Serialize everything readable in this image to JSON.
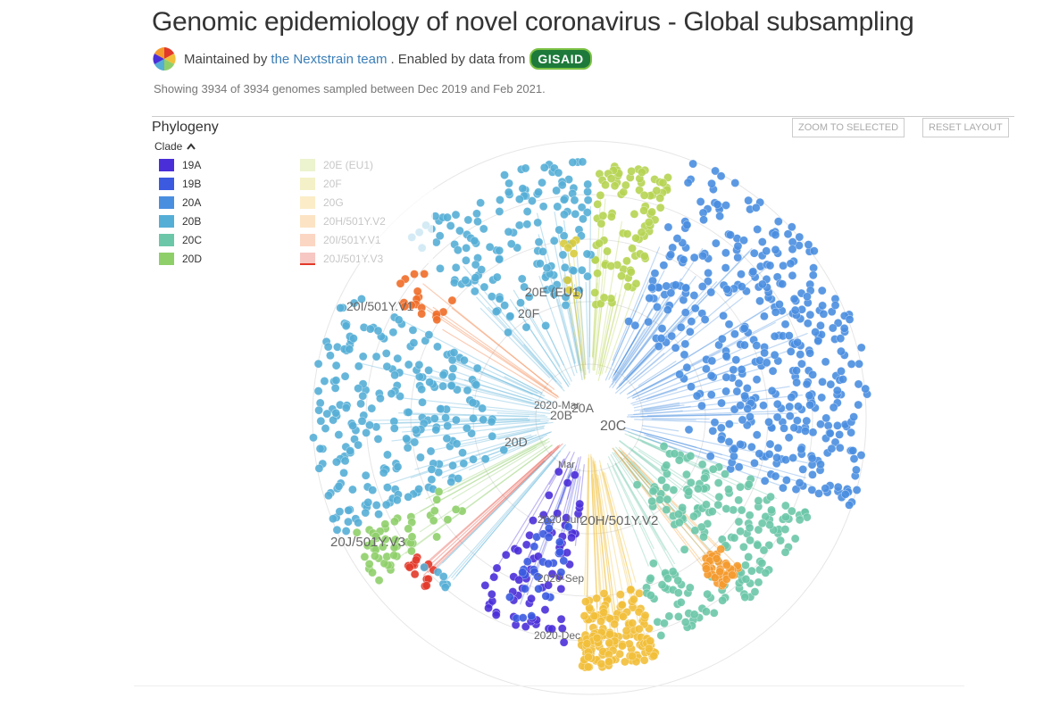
{
  "header": {
    "title": "Genomic epidemiology of novel coronavirus - Global subsampling",
    "maintained_prefix": "Maintained by",
    "maintainer_link": "the Nextstrain team",
    "enabled_text": ". Enabled by data from",
    "gisaid_badge": "GISAID",
    "summary": "Showing 3934 of 3934 genomes sampled between Dec 2019 and Feb 2021."
  },
  "panel": {
    "title": "Phylogeny",
    "zoom_button": "ZOOM TO SELECTED",
    "reset_button": "RESET LAYOUT"
  },
  "legend": {
    "header": "Clade",
    "items": [
      {
        "label": "19A",
        "color": "#4a2fd8"
      },
      {
        "label": "19B",
        "color": "#3b5ae0"
      },
      {
        "label": "20A",
        "color": "#4a8ee0"
      },
      {
        "label": "20B",
        "color": "#55aed6"
      },
      {
        "label": "20C",
        "color": "#6cc7a8"
      },
      {
        "label": "20D",
        "color": "#8fcf6a"
      },
      {
        "label": "20E (EU1)",
        "color": "#b6d452"
      },
      {
        "label": "20F",
        "color": "#d8cb3c"
      },
      {
        "label": "20G",
        "color": "#f2bf3a"
      },
      {
        "label": "20H/501Y.V2",
        "color": "#f59a2e"
      },
      {
        "label": "20I/501Y.V1",
        "color": "#f06d28"
      },
      {
        "label": "20J/501Y.V3",
        "color": "#e23a2a"
      }
    ]
  },
  "tree": {
    "clade_labels": [
      "20I/501Y.V1",
      "20E (EU1)",
      "20F",
      "2020-Mar",
      "20A",
      "20B",
      "20C",
      "20D",
      "Mar",
      "2020-Jun",
      "20H/501Y.V2",
      "20J/501Y.V3",
      "2020-Sep",
      "2020-Dec"
    ]
  },
  "icons": {
    "logo": "nextstrain-logo-icon",
    "collapse": "chevron-up-icon"
  }
}
